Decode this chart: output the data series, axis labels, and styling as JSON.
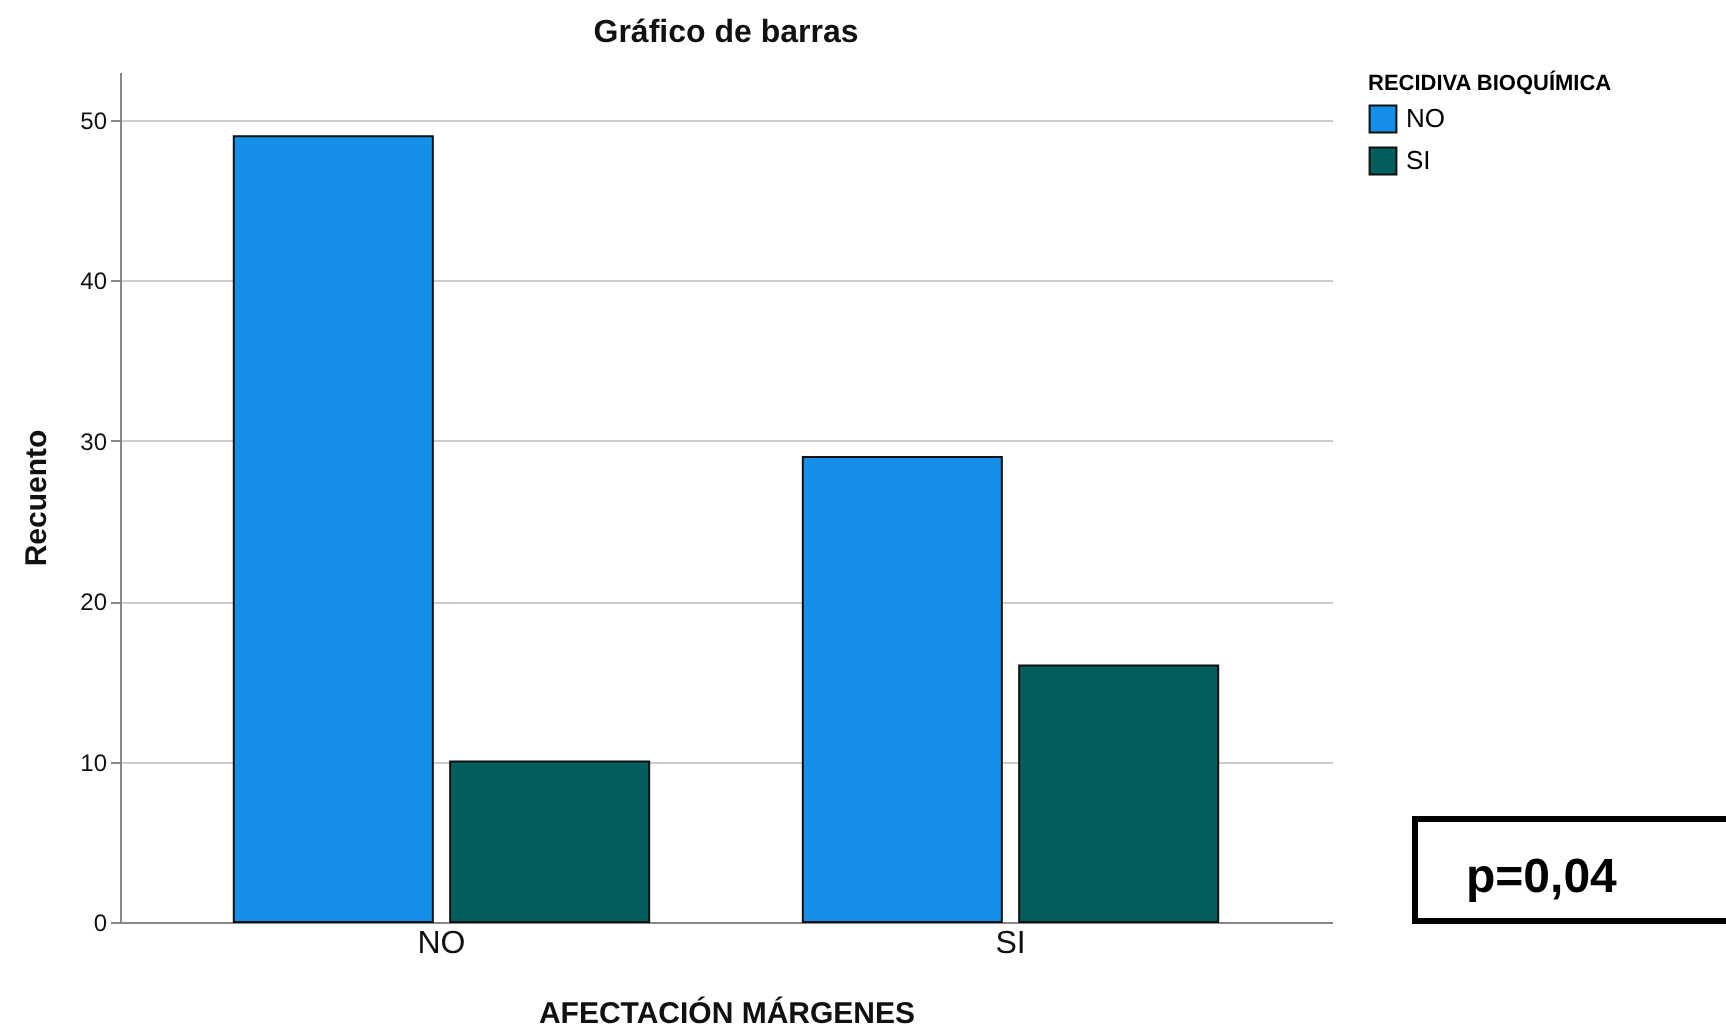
{
  "chart_data": {
    "type": "bar",
    "title": "Gráfico de barras",
    "xlabel": "AFECTACIÓN MÁRGENES",
    "ylabel": "Recuento",
    "legend_title": "RECIDIVA BIOQUÍMICA",
    "categories": [
      "NO",
      "SI"
    ],
    "series": [
      {
        "name": "NO",
        "color": "#1490e8",
        "values": [
          49,
          29
        ]
      },
      {
        "name": "SI",
        "color": "#045e5c",
        "values": [
          10,
          16
        ]
      }
    ],
    "ylim": [
      0,
      53
    ],
    "yticks": [
      0,
      10,
      20,
      30,
      40,
      50
    ],
    "grid": "y",
    "legend": "top right",
    "annotations": [
      "p=0,04"
    ]
  }
}
